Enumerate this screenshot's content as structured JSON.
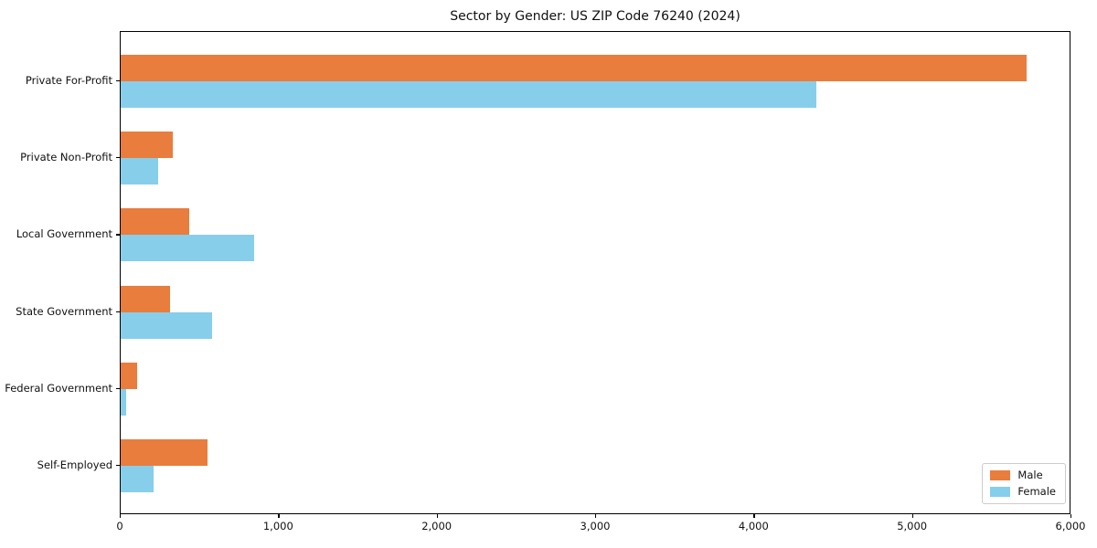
{
  "title": "Sector by Gender: US ZIP Code 76240 (2024)",
  "chart_data": {
    "type": "bar",
    "orientation": "horizontal",
    "title": "Sector by Gender: US ZIP Code 76240 (2024)",
    "categories": [
      "Private For-Profit",
      "Private Non-Profit",
      "Local Government",
      "State Government",
      "Federal Government",
      "Self-Employed"
    ],
    "series": [
      {
        "name": "Male",
        "color": "#e87d3e",
        "values": [
          5730,
          330,
          435,
          310,
          105,
          550
        ]
      },
      {
        "name": "Female",
        "color": "#87ceeb",
        "values": [
          4400,
          235,
          845,
          580,
          35,
          210
        ]
      }
    ],
    "xlabel": "",
    "ylabel": "",
    "xlim": [
      0,
      6000
    ],
    "x_ticks": [
      0,
      1000,
      2000,
      3000,
      4000,
      5000,
      6000
    ],
    "x_tick_labels": [
      "0",
      "1,000",
      "2,000",
      "3,000",
      "4,000",
      "5,000",
      "6,000"
    ],
    "grid": false,
    "background": "#ffffff",
    "legend_position": "lower right"
  }
}
